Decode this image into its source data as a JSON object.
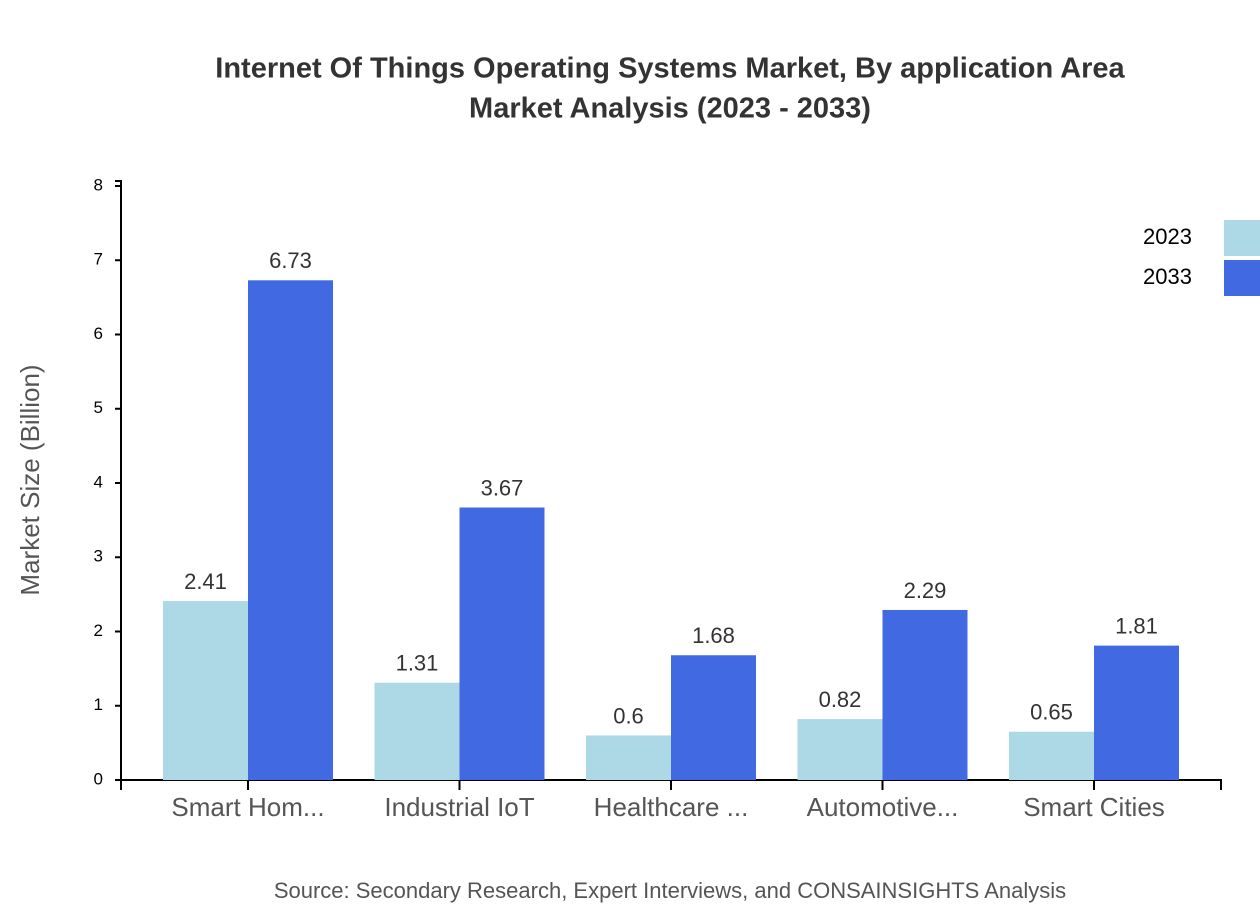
{
  "chart_data": {
    "type": "bar",
    "title": [
      "Internet Of Things Operating Systems Market, By application Area",
      "Market Analysis (2023 - 2033)"
    ],
    "y_label": "Market Size (Billion)",
    "source": "Source: Secondary Research, Expert Interviews, and CONSAINSIGHTS Analysis",
    "categories": [
      "Smart Hom...",
      "Industrial IoT",
      "Healthcare ...",
      "Automotive...",
      "Smart Cities"
    ],
    "series": [
      {
        "name": "2023",
        "color": "#add8e6",
        "values": [
          2.41,
          1.31,
          0.6,
          0.82,
          0.65
        ]
      },
      {
        "name": "2033",
        "color": "#4169e1",
        "values": [
          6.73,
          3.67,
          1.68,
          2.29,
          1.81
        ]
      }
    ],
    "ylim": [
      0,
      8
    ],
    "yticks": [
      0,
      1,
      2,
      3,
      4,
      5,
      6,
      7,
      8
    ],
    "legend": "top-right"
  }
}
